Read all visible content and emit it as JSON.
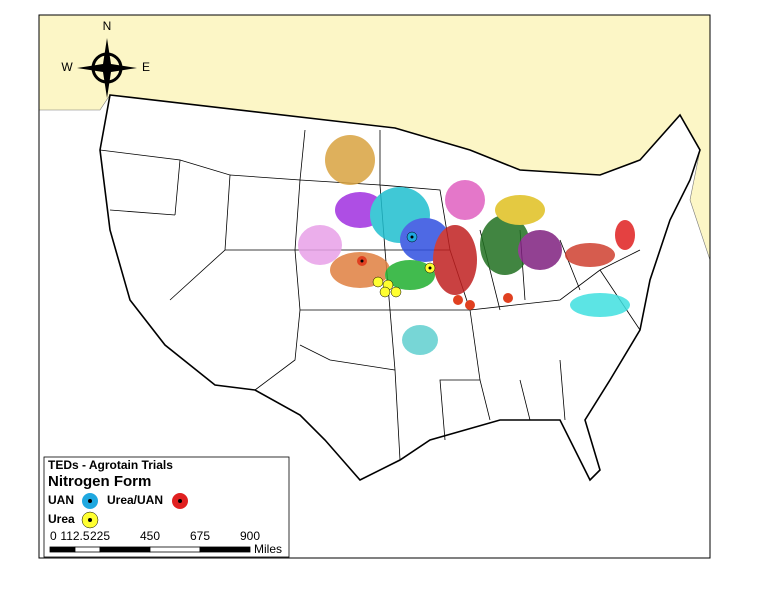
{
  "compass": {
    "north": "N",
    "west": "W",
    "east": "E"
  },
  "legend": {
    "title": "TEDs - Agrotain Trials",
    "subtitle": "Nitrogen Form",
    "items": [
      "UAN",
      "Urea/UAN",
      "Urea"
    ]
  },
  "scale_bar": {
    "labels": [
      0,
      112.5,
      225,
      450,
      675,
      900
    ],
    "unit": "Miles"
  }
}
